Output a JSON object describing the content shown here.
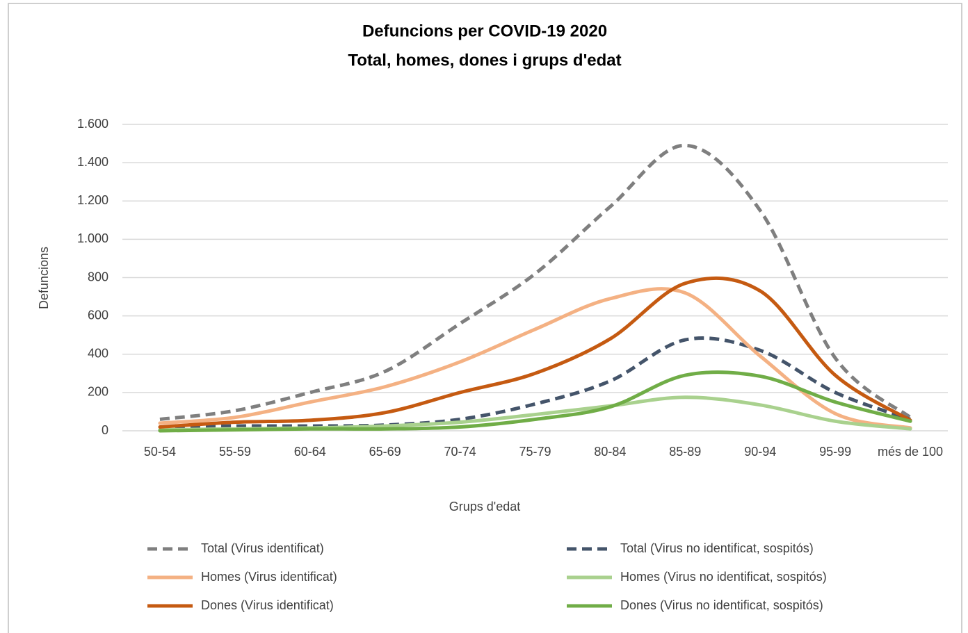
{
  "chart_data": {
    "type": "line",
    "title": "Defuncions per COVID-19 2020",
    "subtitle": "Total, homes, dones i grups d'edat",
    "x_label": "Grups d'edat",
    "y_label": "Defuncions",
    "categories": [
      "50-54",
      "55-59",
      "60-64",
      "65-69",
      "70-74",
      "75-79",
      "80-84",
      "85-89",
      "90-94",
      "95-99",
      "més de 100"
    ],
    "series": [
      {
        "name": "Total (Virus identificat)",
        "color": "#7f7f7f",
        "dashed": true,
        "values": [
          60,
          105,
          200,
          310,
          560,
          820,
          1170,
          1490,
          1150,
          380,
          70
        ]
      },
      {
        "name": "Total (Virus no identificat, sospitós)",
        "color": "#44546a",
        "dashed": true,
        "values": [
          20,
          25,
          25,
          30,
          60,
          140,
          260,
          475,
          420,
          200,
          60
        ]
      },
      {
        "name": "Homes (Virus identificat)",
        "color": "#f4b183",
        "dashed": false,
        "values": [
          40,
          70,
          150,
          230,
          360,
          530,
          690,
          720,
          390,
          90,
          15
        ]
      },
      {
        "name": "Homes (Virus no identificat, sospitós)",
        "color": "#a9d18e",
        "dashed": false,
        "values": [
          5,
          10,
          15,
          25,
          45,
          85,
          130,
          175,
          135,
          50,
          10
        ]
      },
      {
        "name": "Dones (Virus identificat)",
        "color": "#c55a11",
        "dashed": false,
        "values": [
          20,
          45,
          55,
          95,
          200,
          300,
          480,
          770,
          730,
          290,
          55
        ]
      },
      {
        "name": "Dones (Virus no identificat, sospitós)",
        "color": "#70ad47",
        "dashed": false,
        "values": [
          0,
          5,
          10,
          10,
          20,
          60,
          125,
          290,
          285,
          150,
          50
        ]
      }
    ],
    "ylim": [
      0,
      1600
    ],
    "yticks": [
      0,
      200,
      400,
      600,
      800,
      {
        "value": 1000,
        "label": "1.000"
      },
      {
        "value": 1200,
        "label": "1.200"
      },
      {
        "value": 1400,
        "label": "1.400"
      },
      {
        "value": 1600,
        "label": "1.600"
      }
    ],
    "grid": true,
    "smooth": true,
    "legend": "bottom"
  }
}
